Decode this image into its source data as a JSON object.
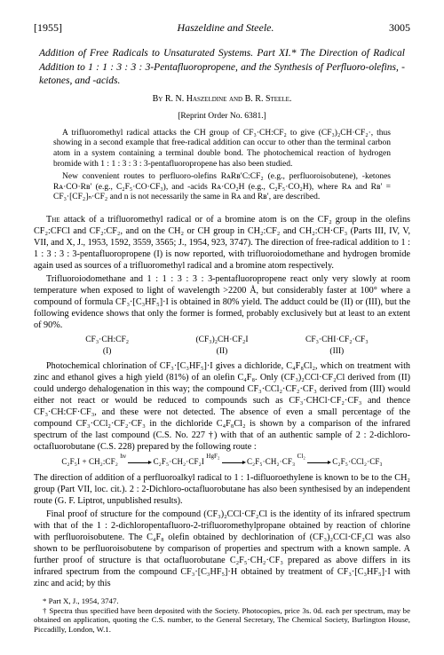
{
  "header": {
    "year": "[1955]",
    "running": "Haszeldine and Steele.",
    "page": "3005"
  },
  "title": "Addition of Free Radicals to Unsaturated Systems. Part XI.* The Direction of Radical Addition to 1 : 1 : 3 : 3 : 3-Pentafluoropropene, and the Synthesis of Perfluoro-olefins, -ketones, and -acids.",
  "authors": "By R. N. Haszeldine and B. R. Steele.",
  "reprint": "[Reprint Order No. 6381.]",
  "abstract": {
    "p1": "A trifluoromethyl radical attacks the CH group of CF₃·CH:CF₂ to give (CF₃)₂CH·CF₂·, thus showing in a second example that free-radical addition can occur to other than the terminal carbon atom in a system containing a terminal double bond. The photochemical reaction of hydrogen bromide with 1 : 1 : 3 : 3 : 3-pentafluoropropene has also been studied.",
    "p2": "New convenient routes to perfluoro-olefins RᴀRʙ′C:CF₂ (e.g., perfluoroisobutene), -ketones Rᴀ·CO·Rʙ′ (e.g., C₂F₅·CO·CF₃), and -acids Rᴀ·CO₂H (e.g., C₂F₅·CO₂H), where Rᴀ and Rʙ′ = CF₃·[CF₂]ₙ·CF₂ and n is not necessarily the same in Rᴀ and Rʙ′, are described."
  },
  "para1": "The attack of a trifluoromethyl radical or of a bromine atom is on the CF₂ group in the olefins CF₂:CFCl and CF₂:CF₂, and on the CH₂ or CH group in CH₂:CF₂ and CH₂:CH·CF₃ (Parts III, IV, V, VII, and X, J., 1953, 1592, 3559, 3565; J., 1954, 923, 3747). The direction of free-radical addition to 1 : 1 : 3 : 3 : 3-pentafluoropropene (I) is now reported, with trifluoroiodomethane and hydrogen bromide again used as sources of a trifluoromethyl radical and a bromine atom respectively.",
  "para2": "Trifluoroiodomethane and 1 : 1 : 3 : 3 : 3-pentafluoropropene react only very slowly at room temperature when exposed to light of wavelength >2200 Å, but considerably faster at 100° where a compound of formula CF₃·[C₃HF₅]·I is obtained in 80% yield. The adduct could be (II) or (III), but the following evidence shows that only the former is formed, probably exclusively but at least to an extent of 90%.",
  "formulae": {
    "c1a": "CF₃·CH:CF₂",
    "c1b": "(I)",
    "c2a": "(CF₃)₂CH·CF₂I",
    "c2b": "(II)",
    "c3a": "CF₃·CHI·CF₂·CF₃",
    "c3b": "(III)"
  },
  "para3": "Photochemical chlorination of CF₃·[C₃HF₅]·I gives a dichloride, C₄F₈Cl₂, which on treatment with zinc and ethanol gives a high yield (81%) of an olefin C₄F₈. Only (CF₃)₂CCl·CF₂Cl derived from (II) could undergo dehalogenation in this way; the compound CF₃·CCl₂·CF₂·CF₃ derived from (III) would either not react or would be reduced to compounds such as CF₃·CHCl·CF₂·CF₃ and thence CF₃·CH:CF·CF₃, and these were not detected. The absence of even a small percentage of the compound CF₃·CCl₂·CF₂·CF₃ in the dichloride C₄F₈Cl₂ is shown by a comparison of the infrared spectrum of the last compound (C.S. No. 227 †) with that of an authentic sample of 2 : 2-dichloro-octafluorobutane (C.S. 228) prepared by the following route :",
  "route": {
    "s1": "C₂F₅I + CH₂:CF₂",
    "l1": "hν",
    "s2": "C₂F₅·CH₂·CF₂I",
    "l2": "HgF₂",
    "s3": "C₂F₅·CH₂·CF₃",
    "l3": "Cl₂",
    "s4": "C₂F₅·CCl₂·CF₃"
  },
  "para4": "The direction of addition of a perfluoroalkyl radical to 1 : 1-difluoroethylene is known to be to the CH₂ group (Part VII, loc. cit.). 2 : 2-Dichloro-octafluorobutane has also been synthesised by an independent route (G. F. Liptrot, unpublished results).",
  "para5": "Final proof of structure for the compound (CF₃)₂CCl·CF₂Cl is the identity of its infrared spectrum with that of the 1 : 2-dichloropentafluoro-2-trifluoromethylpropane obtained by reaction of chlorine with perfluoroisobutene. The C₄F₈ olefin obtained by dechlorination of (CF₃)₂CCl·CF₂Cl was also shown to be perfluoroisobutene by comparison of properties and spectrum with a known sample. A further proof of structure is that octafluorobutane C₂F₅·CH₂·CF₃ prepared as above differs in its infrared spectrum from the compound CF₃·[C₃HF₅]·H obtained by treatment of CF₃·[C₃HF₅]·I with zinc and acid; by this",
  "footnotes": {
    "f1": "* Part X, J., 1954, 3747.",
    "f2": "† Spectra thus specified have been deposited with the Society. Photocopies, price 3s. 0d. each per spectrum, may be obtained on application, quoting the C.S. number, to the General Secretary, The Chemical Society, Burlington House, Piccadilly, London, W.1."
  }
}
